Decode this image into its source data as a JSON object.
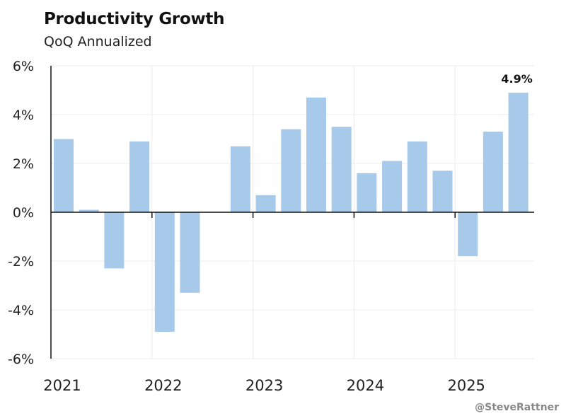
{
  "chart_data": {
    "type": "bar",
    "title": "Productivity Growth",
    "subtitle": "QoQ Annualized",
    "xlabel": "",
    "ylabel": "",
    "ylim": [
      -6,
      6
    ],
    "y_ticks": [
      "6%",
      "4%",
      "2%",
      "0%",
      "-2%",
      "-4%",
      "-6%"
    ],
    "y_tick_values": [
      6,
      4,
      2,
      0,
      -2,
      -4,
      -6
    ],
    "x_tick_labels": [
      "2021",
      "2022",
      "2023",
      "2024",
      "2025"
    ],
    "categories": [
      "2021 Q1",
      "2021 Q2",
      "2021 Q3",
      "2021 Q4",
      "2022 Q1",
      "2022 Q2",
      "2022 Q3",
      "2022 Q4",
      "2023 Q1",
      "2023 Q2",
      "2023 Q3",
      "2023 Q4",
      "2024 Q1",
      "2024 Q2",
      "2024 Q3",
      "2024 Q4",
      "2025 Q1",
      "2025 Q2",
      "2025 Q3"
    ],
    "values": [
      3.0,
      0.1,
      -2.3,
      2.9,
      -4.9,
      -3.3,
      0.0,
      2.7,
      0.7,
      3.4,
      4.7,
      3.5,
      1.6,
      2.1,
      2.9,
      1.7,
      -1.8,
      3.3,
      4.9
    ],
    "annotation": "4.9%",
    "bar_color": "#a7c9ea",
    "grid": true
  },
  "credit": "@SteveRattner"
}
